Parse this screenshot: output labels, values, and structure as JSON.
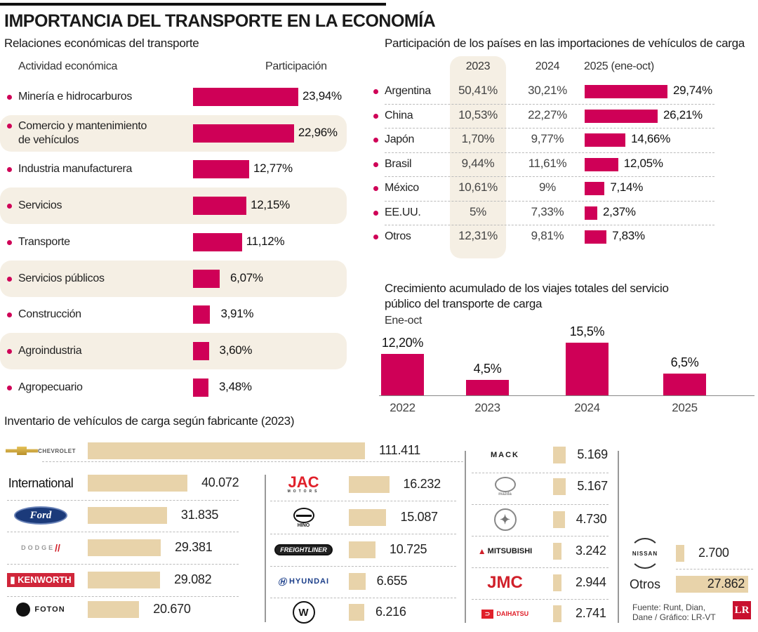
{
  "title": "IMPORTANCIA DEL TRANSPORTE EN LA ECONOMÍA",
  "relaciones": {
    "title": "Relaciones económicas del transporte",
    "col_activity": "Actividad económica",
    "col_share": "Participación"
  },
  "importaciones": {
    "title": "Participación de los países en las importaciones de vehículos de carga",
    "cols": [
      "2023",
      "2024",
      "2025 (ene-oct)"
    ]
  },
  "crecimiento": {
    "title_line1": "Crecimiento acumulado de los viajes totales del servicio",
    "title_line2": "público del transporte de carga",
    "subtitle": "Ene-oct"
  },
  "inventario": {
    "title": "Inventario de vehículos de carga según fabricante (2023)"
  },
  "source": {
    "line1": "Fuente: Runt, Dian,",
    "line2": "Dane / Gráfico: LR-VT",
    "logo": "LR"
  },
  "colors": {
    "accent": "#cf0057",
    "tan": "#e8d3aa",
    "band": "#f5efe4"
  },
  "chart_data": [
    {
      "type": "bar",
      "orientation": "horizontal",
      "title": "Relaciones económicas del transporte",
      "categories": [
        "Minería e hidrocarburos",
        "Comercio y mantenimiento de vehículos",
        "Industria manufacturera",
        "Servicios",
        "Transporte",
        "Servicios públicos",
        "Construcción",
        "Agroindustria",
        "Agropecuario"
      ],
      "category_lines": [
        [
          "Minería e hidrocarburos"
        ],
        [
          "Comercio y mantenimiento",
          "de vehículos"
        ],
        [
          "Industria manufacturera"
        ],
        [
          "Servicios"
        ],
        [
          "Transporte"
        ],
        [
          "Servicios públicos"
        ],
        [
          "Construcción"
        ],
        [
          "Agroindustria"
        ],
        [
          "Agropecuario"
        ]
      ],
      "values": [
        23.94,
        22.96,
        12.77,
        12.15,
        11.12,
        6.07,
        3.91,
        3.6,
        3.48
      ],
      "labels": [
        "23,94%",
        "22,96%",
        "12,77%",
        "12,15%",
        "11,12%",
        "6,07%",
        "3,91%",
        "3,60%",
        "3,48%"
      ],
      "xlabel": "Participación",
      "ylabel": "Actividad económica",
      "unit": "%"
    },
    {
      "type": "table",
      "title": "Participación de los países en las importaciones de vehículos de carga",
      "categories": [
        "Argentina",
        "China",
        "Japón",
        "Brasil",
        "México",
        "EE.UU.",
        "Otros"
      ],
      "series": [
        {
          "name": "2023",
          "values": [
            50.41,
            10.53,
            1.7,
            9.44,
            10.61,
            5,
            12.31
          ],
          "labels": [
            "50,41%",
            "10,53%",
            "1,70%",
            "9,44%",
            "10,61%",
            "5%",
            "12,31%"
          ]
        },
        {
          "name": "2024",
          "values": [
            30.21,
            22.27,
            9.77,
            11.61,
            9,
            7.33,
            9.81
          ],
          "labels": [
            "30,21%",
            "22,27%",
            "9,77%",
            "11,61%",
            "9%",
            "7,33%",
            "9,81%"
          ]
        },
        {
          "name": "2025 (ene-oct)",
          "type": "bar",
          "values": [
            29.74,
            26.21,
            14.66,
            12.05,
            7.14,
            2.37,
            7.83
          ],
          "labels": [
            "29,74%",
            "26,21%",
            "14,66%",
            "12,05%",
            "7,14%",
            "2,37%",
            "7,83%"
          ]
        }
      ],
      "unit": "%"
    },
    {
      "type": "bar",
      "orientation": "vertical",
      "title": "Crecimiento acumulado de los viajes totales del servicio público del transporte de carga",
      "subtitle": "Ene-oct",
      "categories": [
        "2022",
        "2023",
        "2024",
        "2025"
      ],
      "values": [
        12.2,
        4.5,
        15.5,
        6.5
      ],
      "labels": [
        "12,20%",
        "4,5%",
        "15,5%",
        "6,5%"
      ],
      "ylim": [
        0,
        15.5
      ],
      "unit": "%"
    },
    {
      "type": "bar",
      "orientation": "horizontal",
      "title": "Inventario de vehículos de carga según fabricante (2023)",
      "categories": [
        "Chevrolet",
        "International",
        "Ford",
        "Dodge",
        "Kenworth",
        "Foton",
        "JAC Motors",
        "Hino",
        "Freightliner",
        "Hyundai",
        "Volkswagen",
        "Mack",
        "Mazda",
        "Mercedes-Benz",
        "Mitsubishi",
        "JMC",
        "Daihatsu",
        "Nissan",
        "Otros"
      ],
      "values": [
        111411,
        40072,
        31835,
        29381,
        29082,
        20670,
        16232,
        15087,
        10725,
        6655,
        6216,
        5169,
        5167,
        4730,
        3242,
        2944,
        2741,
        2700,
        27862
      ],
      "labels": [
        "111.411",
        "40.072",
        "31.835",
        "29.381",
        "29.082",
        "20.670",
        "16.232",
        "15.087",
        "10.725",
        "6.655",
        "6.216",
        "5.169",
        "5.167",
        "4.730",
        "3.242",
        "2.944",
        "2.741",
        "2.700",
        "27.862"
      ],
      "logo_texts": [
        "CHEVROLET",
        "International",
        "Ford",
        "DODGE",
        "KENWORTH",
        "FOTON",
        "JAC",
        "HINO",
        "FREIGHTLINER",
        "HYUNDAI",
        "VW",
        "MACK",
        "mazda",
        "",
        "MITSUBISHI",
        "JMC",
        "DAIHATSU",
        "NISSAN",
        "Otros"
      ]
    }
  ]
}
